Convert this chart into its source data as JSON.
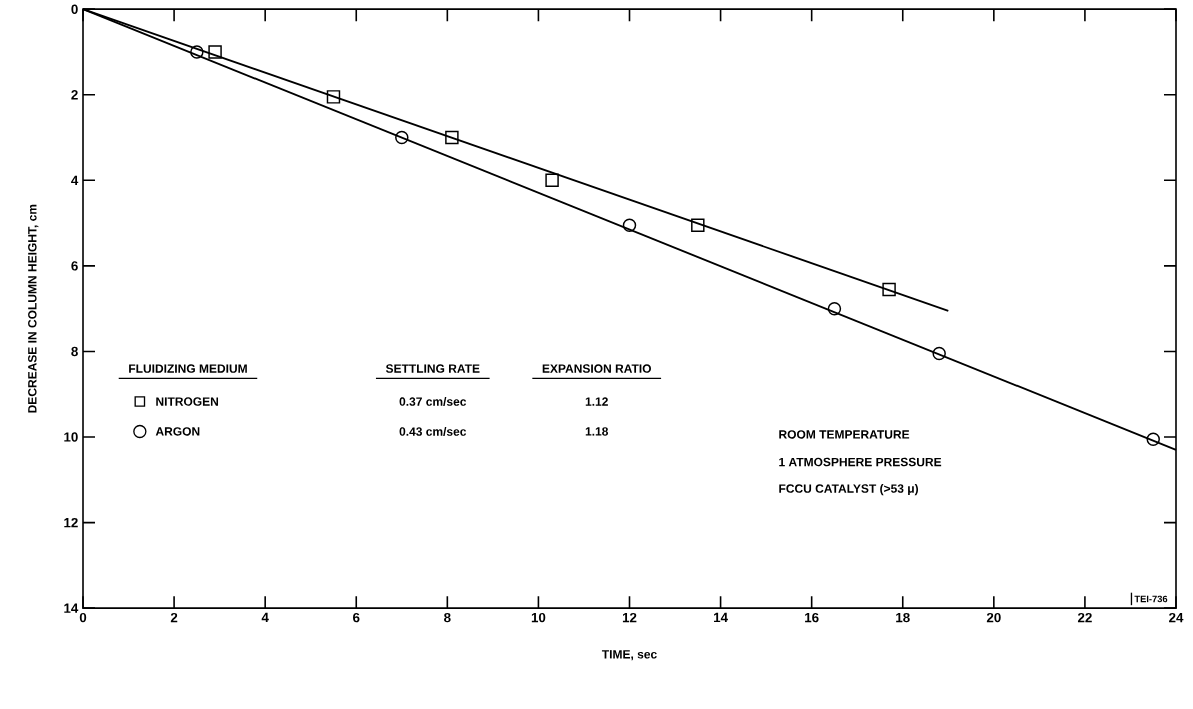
{
  "chart_data": {
    "type": "scatter",
    "xlabel": "TIME, sec",
    "ylabel": "DECREASE IN COLUMN HEIGHT, cm",
    "xlim": [
      0,
      24
    ],
    "ylim": [
      14,
      0
    ],
    "xticks": [
      0,
      2,
      4,
      6,
      8,
      10,
      12,
      14,
      16,
      18,
      20,
      22,
      24
    ],
    "yticks": [
      0,
      2,
      4,
      6,
      8,
      10,
      12,
      14
    ],
    "grid": false,
    "legend": "left",
    "legend_title": "FLUIDIZING MEDIUM",
    "series": [
      {
        "name": "NITROGEN",
        "marker": "square",
        "color": "#000000",
        "x": [
          2.9,
          5.5,
          8.1,
          10.3,
          13.5,
          17.7
        ],
        "values": [
          1.0,
          2.05,
          3.0,
          4.0,
          5.05,
          6.55
        ]
      },
      {
        "name": "ARGON",
        "marker": "circle",
        "color": "#000000",
        "x": [
          2.5,
          7.0,
          12.0,
          16.5,
          18.8,
          23.5
        ],
        "values": [
          1.0,
          3.0,
          5.05,
          7.0,
          8.05,
          10.05
        ]
      },
      {
        "type": "line",
        "marker": "none",
        "color": "#000000",
        "x": [
          0,
          19
        ],
        "values": [
          0,
          7.05
        ]
      },
      {
        "type": "line",
        "marker": "none",
        "color": "#000000",
        "x": [
          0,
          24
        ],
        "values": [
          0,
          10.3
        ]
      }
    ],
    "annotations": [
      "SETTLING RATE",
      "EXPANSION RATIO",
      "0.37 cm/sec",
      "1.12",
      "0.43 cm/sec",
      "1.18",
      "ROOM TEMPERATURE",
      "1 ATMOSPHERE PRESSURE",
      "FCCU CATALYST (>53 μ)",
      "TEI-736"
    ]
  }
}
